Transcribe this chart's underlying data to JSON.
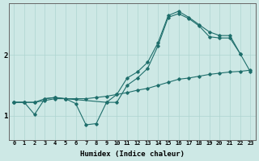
{
  "xlabel": "Humidex (Indice chaleur)",
  "bg_color": "#cde8e5",
  "grid_color": "#aed4d0",
  "line_color": "#1e6e6b",
  "xlim": [
    -0.5,
    23.5
  ],
  "ylim": [
    0.6,
    2.85
  ],
  "yticks": [
    1,
    2
  ],
  "xticks": [
    0,
    1,
    2,
    3,
    4,
    5,
    6,
    7,
    8,
    9,
    10,
    11,
    12,
    13,
    14,
    15,
    16,
    17,
    18,
    19,
    20,
    21,
    22,
    23
  ],
  "line1_x": [
    0,
    1,
    2,
    3,
    4,
    5,
    6,
    7,
    8,
    9,
    10,
    11,
    12,
    13,
    14,
    15,
    16,
    17,
    18,
    19,
    20,
    21,
    22
  ],
  "line1_y": [
    1.22,
    1.22,
    1.02,
    1.28,
    1.3,
    1.28,
    1.2,
    0.85,
    0.87,
    1.22,
    1.22,
    1.5,
    1.62,
    1.78,
    2.15,
    2.62,
    2.68,
    2.6,
    2.48,
    2.3,
    2.28,
    2.28,
    2.02
  ],
  "line2_x": [
    0,
    1,
    2,
    3,
    4,
    5,
    9,
    10,
    11,
    12,
    13,
    14,
    15,
    16,
    17,
    18,
    19,
    20,
    21,
    22,
    23
  ],
  "line2_y": [
    1.22,
    1.22,
    1.22,
    1.28,
    1.3,
    1.28,
    1.22,
    1.35,
    1.62,
    1.72,
    1.88,
    2.2,
    2.65,
    2.72,
    2.62,
    2.5,
    2.38,
    2.32,
    2.32,
    2.02,
    1.72
  ],
  "line3_x": [
    0,
    1,
    2,
    3,
    4,
    5,
    6,
    7,
    8,
    9,
    10,
    11,
    12,
    13,
    14,
    15,
    16,
    17,
    18,
    19,
    20,
    21,
    22,
    23
  ],
  "line3_y": [
    1.22,
    1.22,
    1.22,
    1.25,
    1.28,
    1.28,
    1.28,
    1.28,
    1.3,
    1.32,
    1.35,
    1.38,
    1.42,
    1.45,
    1.5,
    1.55,
    1.6,
    1.62,
    1.65,
    1.68,
    1.7,
    1.72,
    1.73,
    1.75
  ]
}
